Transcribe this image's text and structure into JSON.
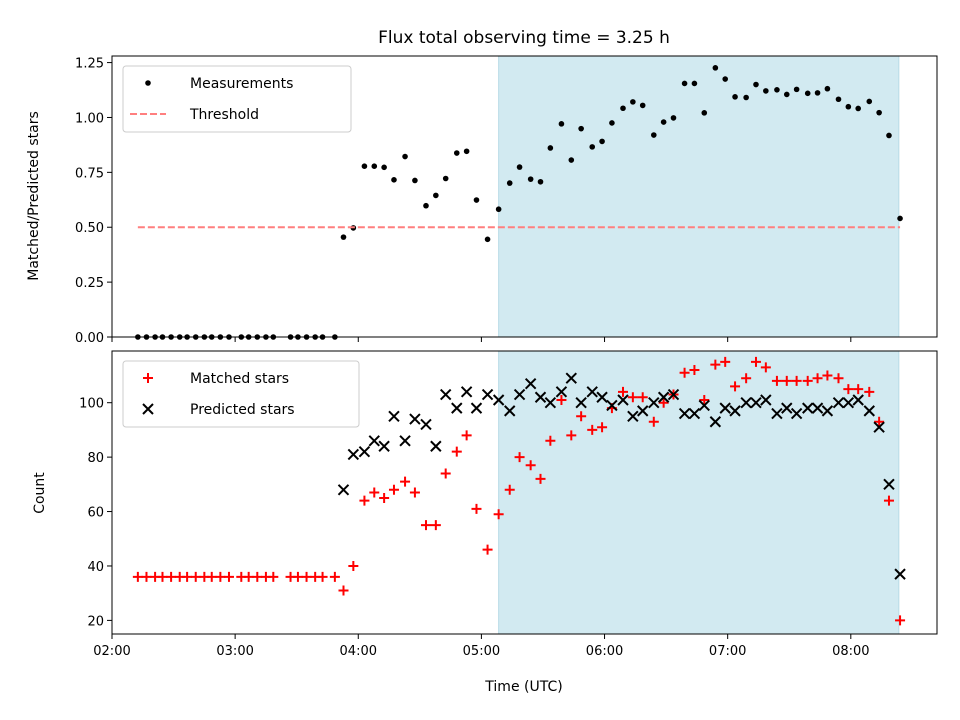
{
  "chart_data": [
    {
      "type": "scatter",
      "title": "Flux total observing time = 3.25 h",
      "xlabel": "",
      "ylabel": "Matched/Predicted stars",
      "ylim": [
        0,
        1.28
      ],
      "yticks": [
        "0.00",
        "0.25",
        "0.50",
        "0.75",
        "1.00",
        "1.25"
      ],
      "ytick_values": [
        0,
        0.25,
        0.5,
        0.75,
        1.0,
        1.25
      ],
      "xlim_hours": [
        2.0,
        8.7
      ],
      "xtick_hours": [
        2,
        3,
        4,
        5,
        6,
        7,
        8
      ],
      "show_xtick_labels": false,
      "shaded_region_hours": [
        5.14,
        8.39
      ],
      "shaded_color": "#d2eaf1",
      "legend_position": "upper-left",
      "series": [
        {
          "name": "Measurements",
          "marker": "dot",
          "color": "#000000",
          "points": [
            [
              2.21,
              0
            ],
            [
              2.28,
              0
            ],
            [
              2.35,
              0
            ],
            [
              2.41,
              0
            ],
            [
              2.48,
              0
            ],
            [
              2.55,
              0
            ],
            [
              2.61,
              0
            ],
            [
              2.68,
              0
            ],
            [
              2.75,
              0
            ],
            [
              2.81,
              0
            ],
            [
              2.88,
              0
            ],
            [
              2.95,
              0
            ],
            [
              3.05,
              0
            ],
            [
              3.11,
              0
            ],
            [
              3.18,
              0
            ],
            [
              3.25,
              0
            ],
            [
              3.31,
              0
            ],
            [
              3.45,
              0
            ],
            [
              3.51,
              0
            ],
            [
              3.58,
              0
            ],
            [
              3.65,
              0
            ],
            [
              3.71,
              0
            ],
            [
              3.81,
              0
            ],
            [
              3.88,
              0.455
            ],
            [
              3.96,
              0.497
            ],
            [
              4.05,
              0.778
            ],
            [
              4.13,
              0.778
            ],
            [
              4.21,
              0.773
            ],
            [
              4.29,
              0.716
            ],
            [
              4.38,
              0.822
            ],
            [
              4.46,
              0.713
            ],
            [
              4.55,
              0.598
            ],
            [
              4.63,
              0.645
            ],
            [
              4.71,
              0.722
            ],
            [
              4.8,
              0.838
            ],
            [
              4.88,
              0.846
            ],
            [
              4.96,
              0.624
            ],
            [
              5.05,
              0.445
            ],
            [
              5.14,
              0.582
            ],
            [
              5.23,
              0.701
            ],
            [
              5.31,
              0.774
            ],
            [
              5.4,
              0.719
            ],
            [
              5.48,
              0.707
            ],
            [
              5.56,
              0.861
            ],
            [
              5.65,
              0.971
            ],
            [
              5.73,
              0.806
            ],
            [
              5.81,
              0.949
            ],
            [
              5.9,
              0.866
            ],
            [
              5.98,
              0.891
            ],
            [
              6.06,
              0.975
            ],
            [
              6.15,
              1.042
            ],
            [
              6.23,
              1.071
            ],
            [
              6.31,
              1.055
            ],
            [
              6.4,
              0.92
            ],
            [
              6.48,
              0.979
            ],
            [
              6.56,
              0.998
            ],
            [
              6.65,
              1.155
            ],
            [
              6.73,
              1.155
            ],
            [
              6.81,
              1.021
            ],
            [
              6.9,
              1.226
            ],
            [
              6.98,
              1.175
            ],
            [
              7.06,
              1.094
            ],
            [
              7.15,
              1.091
            ],
            [
              7.23,
              1.15
            ],
            [
              7.31,
              1.121
            ],
            [
              7.4,
              1.126
            ],
            [
              7.48,
              1.105
            ],
            [
              7.56,
              1.128
            ],
            [
              7.65,
              1.11
            ],
            [
              7.73,
              1.112
            ],
            [
              7.81,
              1.131
            ],
            [
              7.9,
              1.083
            ],
            [
              7.98,
              1.049
            ],
            [
              8.06,
              1.041
            ],
            [
              8.15,
              1.073
            ],
            [
              8.23,
              1.022
            ],
            [
              8.31,
              0.918
            ],
            [
              8.4,
              0.54
            ]
          ]
        },
        {
          "name": "Threshold",
          "marker": "dashed-line",
          "color": "#ff7f7f",
          "points": [
            [
              2.21,
              0.5
            ],
            [
              8.4,
              0.5
            ]
          ]
        }
      ]
    },
    {
      "type": "scatter",
      "title": "",
      "xlabel": "Time (UTC)",
      "ylabel": "Count",
      "ylim": [
        15,
        119
      ],
      "yticks": [
        "20",
        "40",
        "60",
        "80",
        "100"
      ],
      "ytick_values": [
        20,
        40,
        60,
        80,
        100
      ],
      "xlim_hours": [
        2.0,
        8.7
      ],
      "xtick_hours": [
        2,
        3,
        4,
        5,
        6,
        7,
        8
      ],
      "xticks": [
        "02:00",
        "03:00",
        "04:00",
        "05:00",
        "06:00",
        "07:00",
        "08:00"
      ],
      "show_xtick_labels": true,
      "shaded_region_hours": [
        5.14,
        8.39
      ],
      "shaded_color": "#d2eaf1",
      "legend_position": "upper-left",
      "series": [
        {
          "name": "Matched stars",
          "marker": "plus",
          "color": "#ff0000",
          "points": [
            [
              2.21,
              36
            ],
            [
              2.28,
              36
            ],
            [
              2.35,
              36
            ],
            [
              2.41,
              36
            ],
            [
              2.48,
              36
            ],
            [
              2.55,
              36
            ],
            [
              2.61,
              36
            ],
            [
              2.68,
              36
            ],
            [
              2.75,
              36
            ],
            [
              2.81,
              36
            ],
            [
              2.88,
              36
            ],
            [
              2.95,
              36
            ],
            [
              3.05,
              36
            ],
            [
              3.11,
              36
            ],
            [
              3.18,
              36
            ],
            [
              3.25,
              36
            ],
            [
              3.31,
              36
            ],
            [
              3.45,
              36
            ],
            [
              3.51,
              36
            ],
            [
              3.58,
              36
            ],
            [
              3.65,
              36
            ],
            [
              3.71,
              36
            ],
            [
              3.81,
              36
            ],
            [
              3.88,
              31
            ],
            [
              3.96,
              40
            ],
            [
              4.05,
              64
            ],
            [
              4.13,
              67
            ],
            [
              4.21,
              65
            ],
            [
              4.29,
              68
            ],
            [
              4.38,
              71
            ],
            [
              4.46,
              67
            ],
            [
              4.55,
              55
            ],
            [
              4.63,
              55
            ],
            [
              4.71,
              74
            ],
            [
              4.8,
              82
            ],
            [
              4.88,
              88
            ],
            [
              4.96,
              61
            ],
            [
              5.05,
              46
            ],
            [
              5.14,
              59
            ],
            [
              5.23,
              68
            ],
            [
              5.31,
              80
            ],
            [
              5.4,
              77
            ],
            [
              5.48,
              72
            ],
            [
              5.56,
              86
            ],
            [
              5.65,
              101
            ],
            [
              5.73,
              88
            ],
            [
              5.81,
              95
            ],
            [
              5.9,
              90
            ],
            [
              5.98,
              91
            ],
            [
              6.06,
              98
            ],
            [
              6.15,
              104
            ],
            [
              6.23,
              102
            ],
            [
              6.31,
              102
            ],
            [
              6.4,
              93
            ],
            [
              6.48,
              100
            ],
            [
              6.56,
              103
            ],
            [
              6.65,
              111
            ],
            [
              6.73,
              112
            ],
            [
              6.81,
              101
            ],
            [
              6.9,
              114
            ],
            [
              6.98,
              115
            ],
            [
              7.06,
              106
            ],
            [
              7.15,
              109
            ],
            [
              7.23,
              115
            ],
            [
              7.31,
              113
            ],
            [
              7.4,
              108
            ],
            [
              7.48,
              108
            ],
            [
              7.56,
              108
            ],
            [
              7.65,
              108
            ],
            [
              7.73,
              109
            ],
            [
              7.81,
              110
            ],
            [
              7.9,
              109
            ],
            [
              7.98,
              105
            ],
            [
              8.06,
              105
            ],
            [
              8.15,
              104
            ],
            [
              8.23,
              93
            ],
            [
              8.31,
              64
            ],
            [
              8.4,
              20
            ]
          ]
        },
        {
          "name": "Predicted stars",
          "marker": "x",
          "color": "#000000",
          "points": [
            [
              3.88,
              68
            ],
            [
              3.96,
              81
            ],
            [
              4.05,
              82
            ],
            [
              4.13,
              86
            ],
            [
              4.21,
              84
            ],
            [
              4.29,
              95
            ],
            [
              4.38,
              86
            ],
            [
              4.46,
              94
            ],
            [
              4.55,
              92
            ],
            [
              4.63,
              84
            ],
            [
              4.71,
              103
            ],
            [
              4.8,
              98
            ],
            [
              4.88,
              104
            ],
            [
              4.96,
              98
            ],
            [
              5.05,
              103
            ],
            [
              5.14,
              101
            ],
            [
              5.23,
              97
            ],
            [
              5.31,
              103
            ],
            [
              5.4,
              107
            ],
            [
              5.48,
              102
            ],
            [
              5.56,
              100
            ],
            [
              5.65,
              104
            ],
            [
              5.73,
              109
            ],
            [
              5.81,
              100
            ],
            [
              5.9,
              104
            ],
            [
              5.98,
              102
            ],
            [
              6.06,
              99
            ],
            [
              6.15,
              101
            ],
            [
              6.23,
              95
            ],
            [
              6.31,
              97
            ],
            [
              6.4,
              100
            ],
            [
              6.48,
              102
            ],
            [
              6.56,
              103
            ],
            [
              6.65,
              96
            ],
            [
              6.73,
              96
            ],
            [
              6.81,
              99
            ],
            [
              6.9,
              93
            ],
            [
              6.98,
              98
            ],
            [
              7.06,
              97
            ],
            [
              7.15,
              100
            ],
            [
              7.23,
              100
            ],
            [
              7.31,
              101
            ],
            [
              7.4,
              96
            ],
            [
              7.48,
              98
            ],
            [
              7.56,
              96
            ],
            [
              7.65,
              98
            ],
            [
              7.73,
              98
            ],
            [
              7.81,
              97
            ],
            [
              7.9,
              100
            ],
            [
              7.98,
              100
            ],
            [
              8.06,
              101
            ],
            [
              8.15,
              97
            ],
            [
              8.23,
              91
            ],
            [
              8.31,
              70
            ],
            [
              8.4,
              37
            ]
          ]
        }
      ]
    }
  ]
}
